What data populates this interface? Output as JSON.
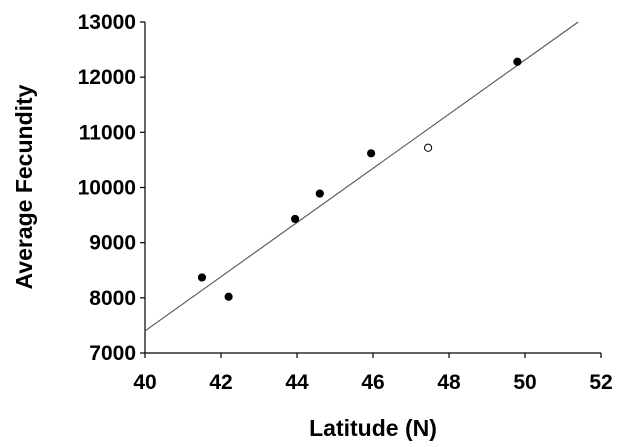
{
  "chart_data": {
    "type": "scatter",
    "title": "",
    "xlabel": "Latitude (N)",
    "ylabel": "Average Fecundity",
    "xlim": [
      40,
      52
    ],
    "ylim": [
      7000,
      13000
    ],
    "xticks": [
      "40",
      "42",
      "44",
      "46",
      "48",
      "50",
      "52"
    ],
    "yticks": [
      "7000",
      "8000",
      "9000",
      "10000",
      "11000",
      "12000",
      "13000"
    ],
    "grid": false,
    "legend": "none",
    "series": [
      {
        "marker": "filled-circle",
        "color": "#000000",
        "points": [
          {
            "x": 41.5,
            "y": 8370
          },
          {
            "x": 42.2,
            "y": 8020
          },
          {
            "x": 43.95,
            "y": 9430
          },
          {
            "x": 44.6,
            "y": 9890
          },
          {
            "x": 45.95,
            "y": 10620
          },
          {
            "x": 49.8,
            "y": 12280
          }
        ]
      },
      {
        "marker": "open-circle",
        "color": "#000000",
        "points": [
          {
            "x": 47.45,
            "y": 10720
          }
        ]
      }
    ],
    "trendline": {
      "type": "linear",
      "color": "#555555",
      "from": {
        "x": 40,
        "y": 7400
      },
      "to": {
        "x": 51.4,
        "y": 13000
      }
    }
  }
}
